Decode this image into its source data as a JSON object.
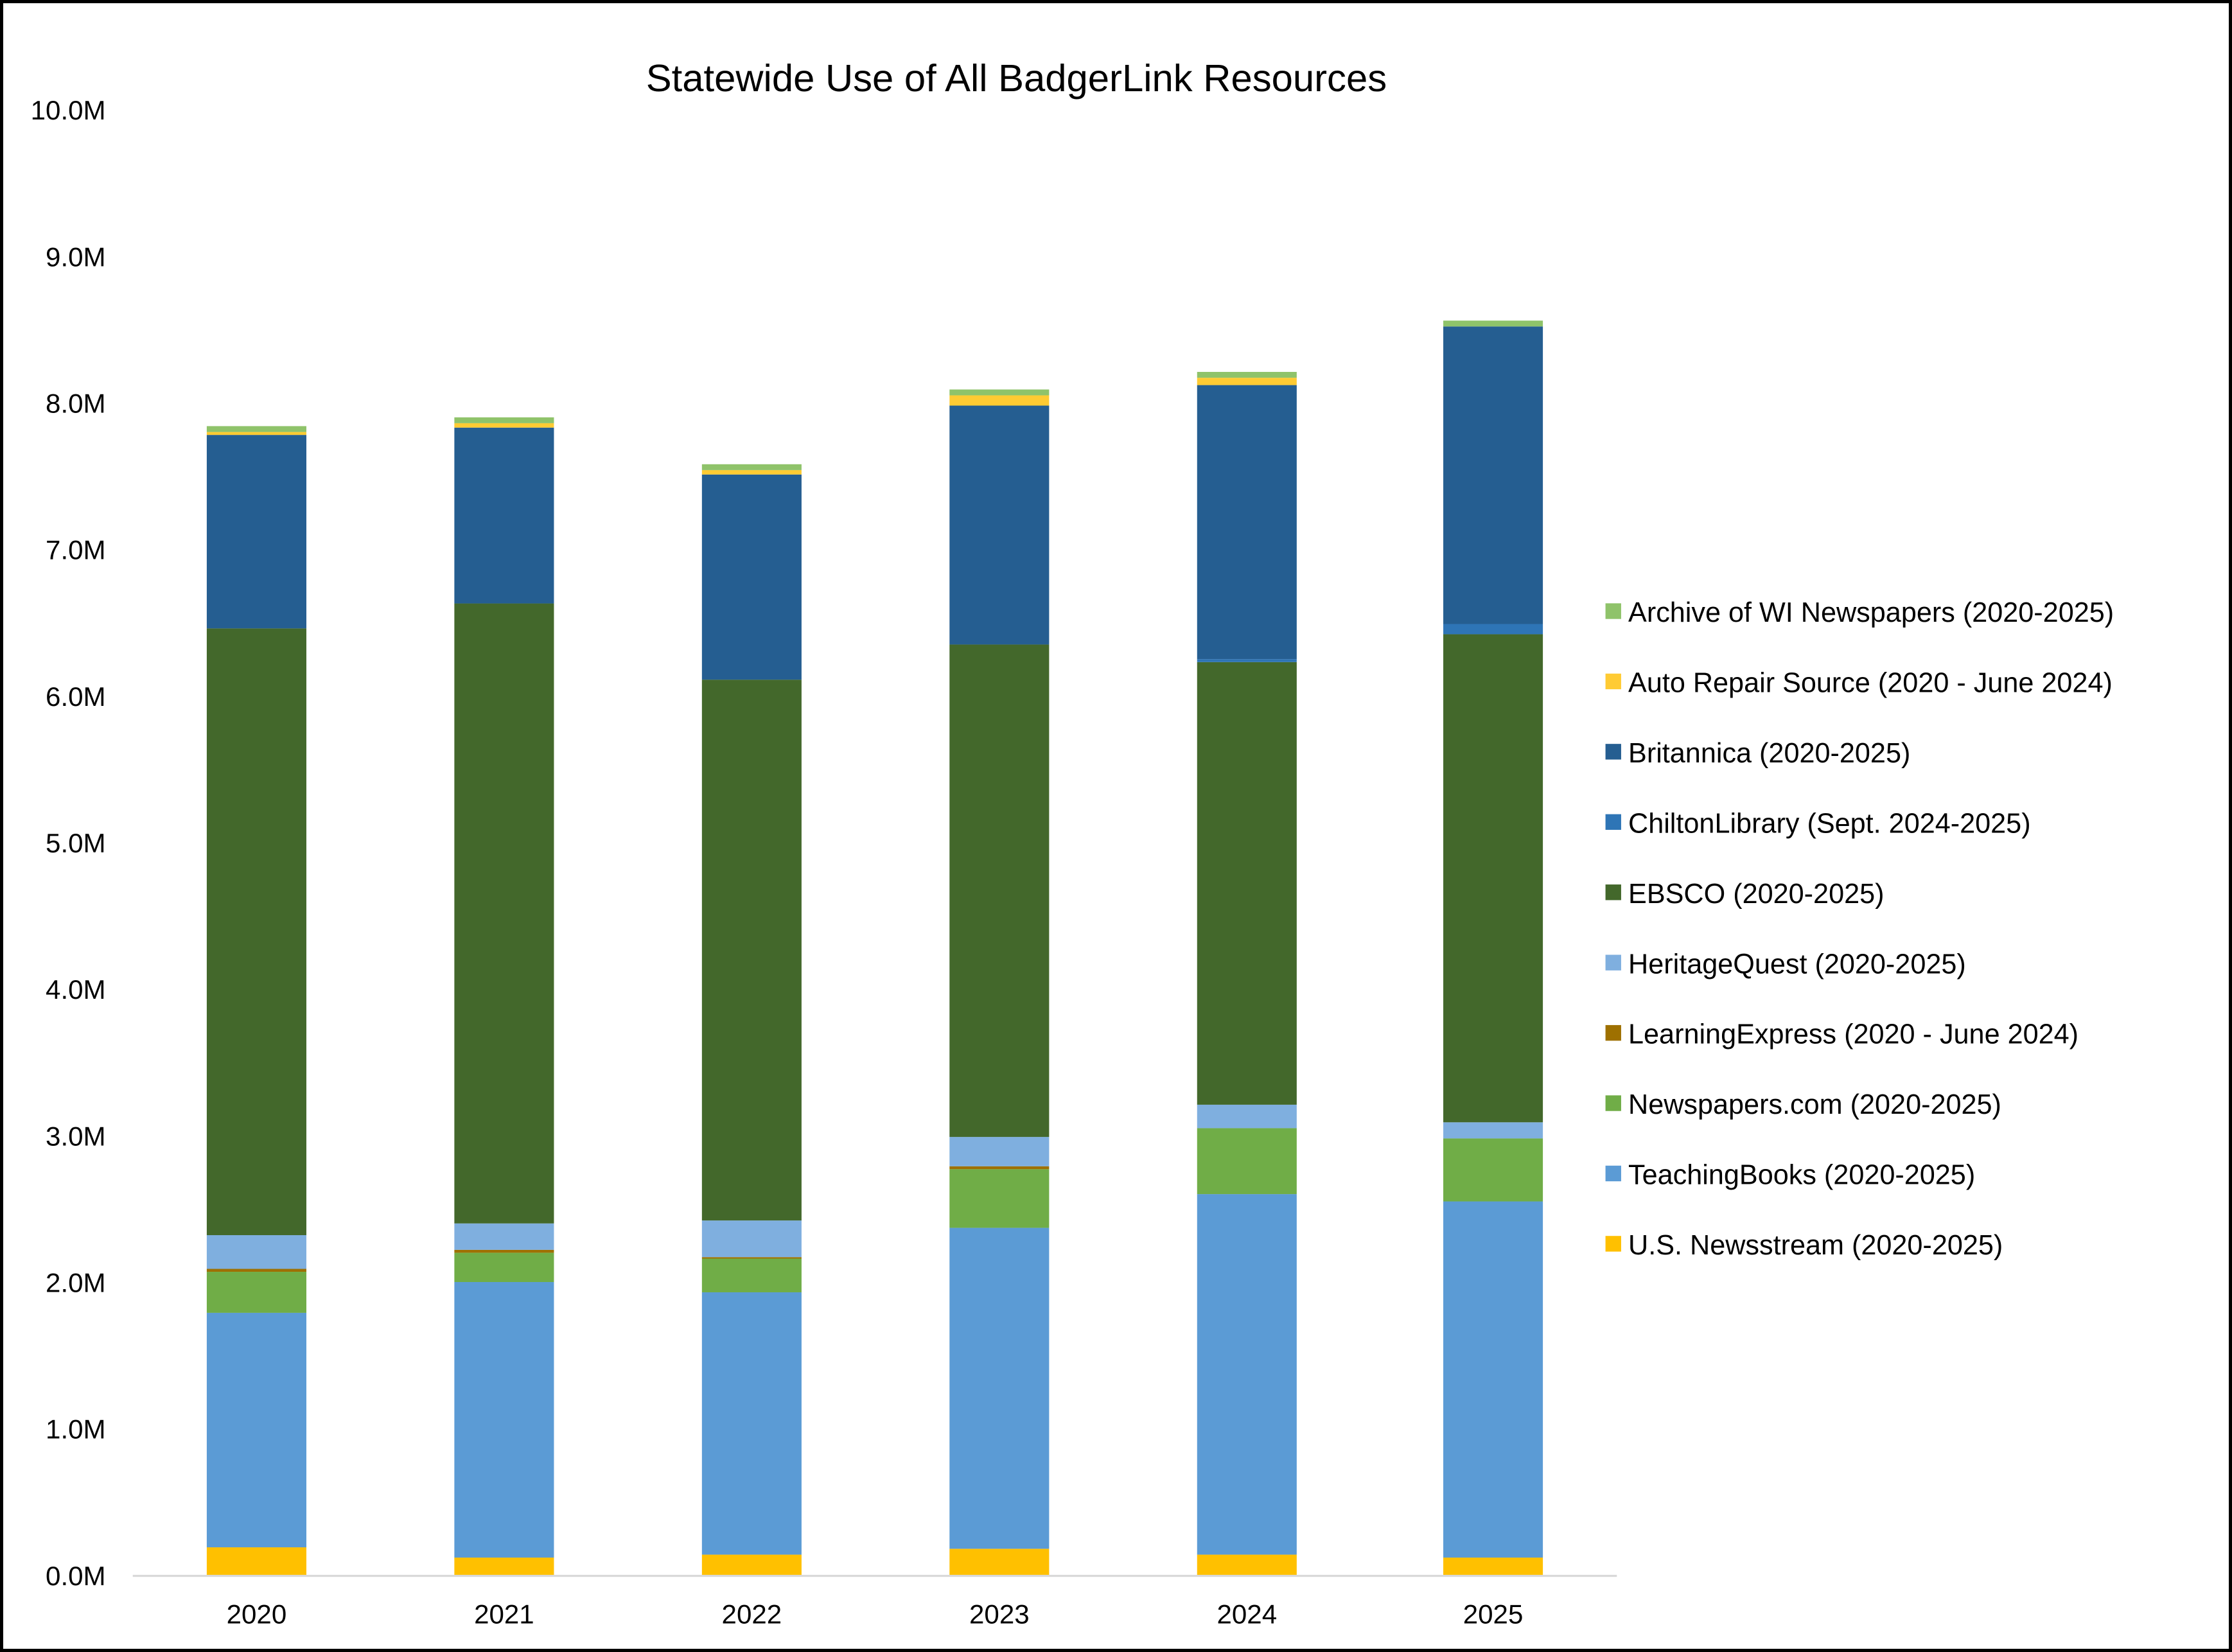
{
  "chart_data": {
    "type": "bar",
    "stacked": true,
    "title": "Statewide Use of All BadgerLink Resources",
    "xlabel": "",
    "ylabel": "",
    "ylim": [
      0,
      10
    ],
    "y_unit": "M",
    "yticks": [
      "0.0M",
      "1.0M",
      "2.0M",
      "3.0M",
      "4.0M",
      "5.0M",
      "6.0M",
      "7.0M",
      "8.0M",
      "9.0M",
      "10.0M"
    ],
    "grid": false,
    "legend_position": "right",
    "categories": [
      "2020",
      "2021",
      "2022",
      "2023",
      "2024",
      "2025"
    ],
    "series": [
      {
        "name": "U.S. Newsstream (2020-2025)",
        "color": "#FFC000",
        "values": [
          0.19,
          0.12,
          0.14,
          0.18,
          0.14,
          0.12
        ]
      },
      {
        "name": "TeachingBooks (2020-2025)",
        "color": "#5B9BD5",
        "values": [
          1.6,
          1.88,
          1.79,
          2.19,
          2.46,
          2.43
        ]
      },
      {
        "name": "Newspapers.com (2020-2025)",
        "color": "#70AD47",
        "values": [
          0.28,
          0.2,
          0.23,
          0.4,
          0.45,
          0.43
        ]
      },
      {
        "name": "LearningExpress (2020 - June 2024)",
        "color": "#9E7000",
        "values": [
          0.02,
          0.02,
          0.01,
          0.02,
          0.0,
          0.0
        ]
      },
      {
        "name": "HeritageQuest (2020-2025)",
        "color": "#7FAFDF",
        "values": [
          0.23,
          0.18,
          0.25,
          0.2,
          0.16,
          0.11
        ]
      },
      {
        "name": "EBSCO (2020-2025)",
        "color": "#43682B",
        "values": [
          4.14,
          4.23,
          3.69,
          3.36,
          3.02,
          3.33
        ]
      },
      {
        "name": "ChiltonLibrary (Sept. 2024-2025)",
        "color": "#2E75B6",
        "values": [
          0,
          0,
          0,
          0,
          0.02,
          0.07
        ]
      },
      {
        "name": "Britannica (2020-2025)",
        "color": "#255E91",
        "values": [
          1.32,
          1.2,
          1.4,
          1.63,
          1.87,
          2.03
        ]
      },
      {
        "name": "Auto Repair Source (2020 - June 2024)",
        "color": "#FFCB33",
        "values": [
          0.02,
          0.03,
          0.03,
          0.07,
          0.05,
          0.0
        ]
      },
      {
        "name": "Archive of WI Newspapers (2020-2025)",
        "color": "#8FC36A",
        "values": [
          0.04,
          0.04,
          0.04,
          0.04,
          0.04,
          0.04
        ]
      }
    ],
    "legend_order": [
      "Archive of WI Newspapers (2020-2025)",
      "Auto Repair Source (2020 - June 2024)",
      "Britannica (2020-2025)",
      "ChiltonLibrary (Sept. 2024-2025)",
      "EBSCO (2020-2025)",
      "HeritageQuest (2020-2025)",
      "LearningExpress (2020 - June 2024)",
      "Newspapers.com (2020-2025)",
      "TeachingBooks (2020-2025)",
      "U.S. Newsstream (2020-2025)"
    ]
  }
}
